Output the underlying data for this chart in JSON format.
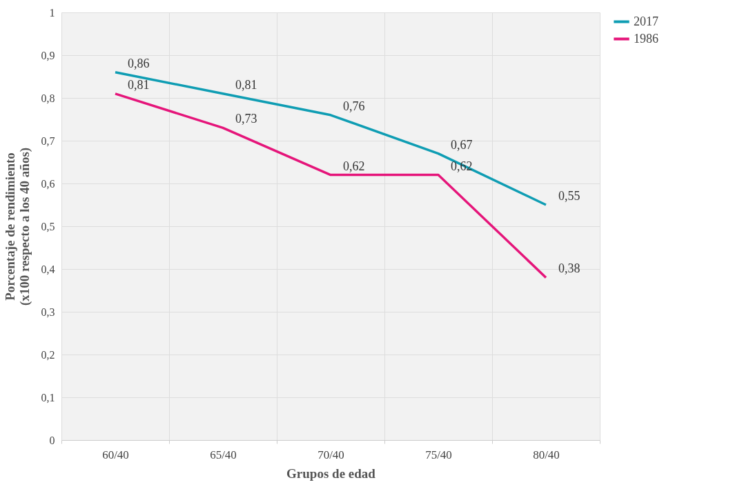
{
  "chart_data": {
    "type": "line",
    "xlabel": "Grupos de edad",
    "ylabel": "Porcentaje de rendimiento (x100 respecto a los 40 años)",
    "categories": [
      "60/40",
      "65/40",
      "70/40",
      "75/40",
      "80/40"
    ],
    "series": [
      {
        "name": "2017",
        "color": "#0f9db3",
        "values": [
          0.86,
          0.81,
          0.76,
          0.67,
          0.55
        ],
        "value_labels": [
          "0,86",
          "0,81",
          "0,76",
          "0,67",
          "0,55"
        ]
      },
      {
        "name": "1986",
        "color": "#e5157a",
        "values": [
          0.81,
          0.73,
          0.62,
          0.62,
          0.38
        ],
        "value_labels": [
          "0,81",
          "0,73",
          "0,62",
          "0,62",
          "0,38"
        ]
      }
    ],
    "ylim": [
      0,
      1
    ],
    "yticks": [
      0,
      {
        "value": 0.1,
        "label": "0,1"
      },
      {
        "value": 0.2,
        "label": "0,2"
      },
      {
        "value": 0.3,
        "label": "0,3"
      },
      {
        "value": 0.4,
        "label": "0,4"
      },
      {
        "value": 0.5,
        "label": "0,5"
      },
      {
        "value": 0.6,
        "label": "0,6"
      },
      {
        "value": 0.7,
        "label": "0,7"
      },
      {
        "value": 0.8,
        "label": "0,8"
      },
      {
        "value": 0.9,
        "label": "0,9"
      },
      1
    ],
    "grid": true,
    "legend": "right",
    "marker": "none",
    "line_style": "solid"
  }
}
